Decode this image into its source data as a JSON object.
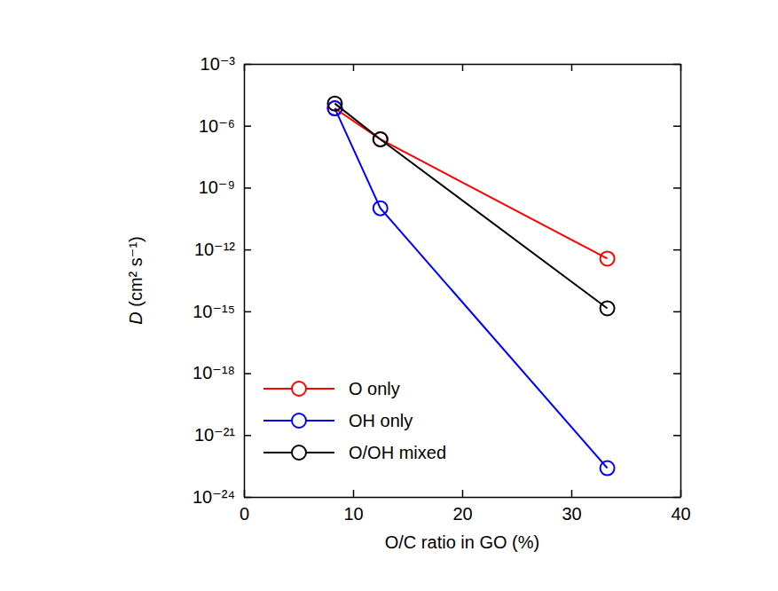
{
  "chart_data": {
    "type": "line",
    "x_label": "O/C ratio in GO (%)",
    "y_label": "D (cm² s⁻¹)",
    "x": [
      8.33,
      12.5,
      33.3
    ],
    "series": [
      {
        "name": "O only",
        "color": "#ff0000",
        "marker": "circle",
        "values": [
          7e-06,
          2.2e-07,
          3.6e-13
        ]
      },
      {
        "name": "OH only",
        "color": "#0000ff",
        "marker": "circle",
        "values": [
          7e-06,
          1e-10,
          2.5e-23
        ]
      },
      {
        "name": "O/OH mixed",
        "color": "#000000",
        "marker": "circle",
        "values": [
          1.2e-05,
          2.2e-07,
          1.4e-15
        ]
      }
    ],
    "xlim": [
      0,
      40
    ],
    "xticks": [
      0,
      10,
      20,
      30,
      40
    ],
    "ylim": [
      1e-24,
      0.001
    ],
    "yticks": [
      {
        "value": 1e-24,
        "label": "10⁻²⁴"
      },
      {
        "value": 1e-21,
        "label": "10⁻²¹"
      },
      {
        "value": 1e-18,
        "label": "10⁻¹⁸"
      },
      {
        "value": 1e-15,
        "label": "10⁻¹⁵"
      },
      {
        "value": 1e-12,
        "label": "10⁻¹²"
      },
      {
        "value": 1e-09,
        "label": "10⁻⁹"
      },
      {
        "value": 1e-06,
        "label": "10⁻⁶"
      },
      {
        "value": 0.001,
        "label": "10⁻³"
      }
    ],
    "log": "y",
    "legend": "lower left",
    "grid": false
  }
}
